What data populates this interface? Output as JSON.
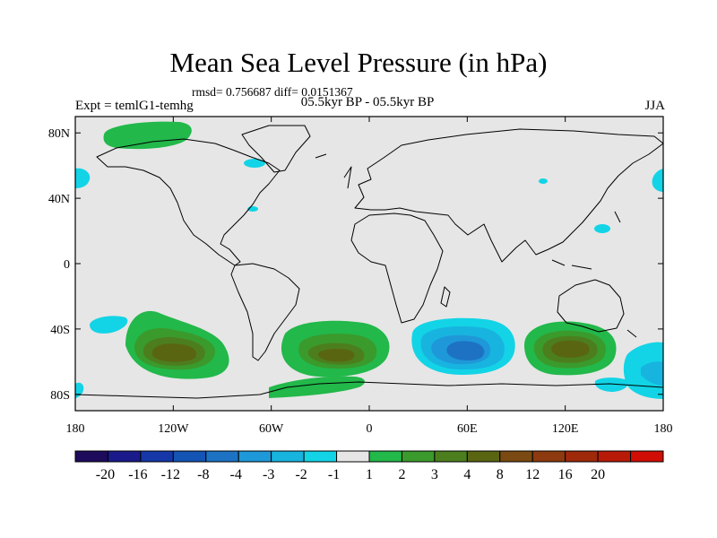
{
  "chart_data": {
    "type": "filled-contour map",
    "title": "Mean Sea Level Pressure (in hPa)",
    "stats_line": "rmsd= 0.756687 diff= 0.0151367",
    "experiment": "Expt = temlG1-temhg",
    "period": "05.5kyr BP - 05.5kyr BP",
    "season": "JJA",
    "background_color": "#e6e6e6",
    "x_axis": {
      "range": [
        -180,
        180
      ],
      "ticks": [
        -180,
        -120,
        -60,
        0,
        60,
        120,
        180
      ],
      "tick_labels": [
        "180",
        "120W",
        "60W",
        "0",
        "60E",
        "120E",
        "180"
      ]
    },
    "y_axis": {
      "range": [
        -90,
        90
      ],
      "ticks": [
        80,
        40,
        0,
        -40,
        -80
      ],
      "tick_labels": [
        "80N",
        "40N",
        "0",
        "40S",
        "80S"
      ]
    },
    "colorbar": {
      "colors": [
        "#1e0b5c",
        "#1a1a8a",
        "#1637a8",
        "#1454b4",
        "#1d72c4",
        "#1e98d8",
        "#18b4e0",
        "#12d4e6",
        "#e6e6e6",
        "#22b84a",
        "#3b9a2c",
        "#4c7e1e",
        "#5a6512",
        "#7a4a12",
        "#8c3a0e",
        "#9e2a0a",
        "#b81a08",
        "#d00e05"
      ],
      "labels": [
        "-20",
        "-16",
        "-12",
        "-8",
        "-4",
        "-3",
        "-2",
        "-1",
        "1",
        "2",
        "3",
        "4",
        "8",
        "12",
        "16",
        "20"
      ]
    },
    "anomaly_regions": [
      {
        "name": "south-pacific-west-high",
        "lon": -125,
        "lat": -56,
        "max_level": 3
      },
      {
        "name": "south-atlantic-high",
        "lon": -10,
        "lat": -52,
        "max_level": 3
      },
      {
        "name": "south-indian-high",
        "lon": 120,
        "lat": -52,
        "max_level": 3
      },
      {
        "name": "south-indian-low",
        "lon": 57,
        "lat": -52,
        "max_level": -3
      },
      {
        "name": "arctic-greenland-high",
        "lon": -150,
        "lat": 82,
        "max_level": 1
      },
      {
        "name": "antarctic-coast-high",
        "lon": -28,
        "lat": -80,
        "max_level": 1
      },
      {
        "name": "tasman-low",
        "lon": 165,
        "lat": -68,
        "max_level": -1
      },
      {
        "name": "pacific-sw-low",
        "lon": -172,
        "lat": -45,
        "max_level": -1
      },
      {
        "name": "north-pacific-east-low",
        "lon": -178,
        "lat": 50,
        "max_level": -1
      },
      {
        "name": "north-pacific-west-low",
        "lon": 178,
        "lat": 48,
        "max_level": -1
      }
    ]
  }
}
